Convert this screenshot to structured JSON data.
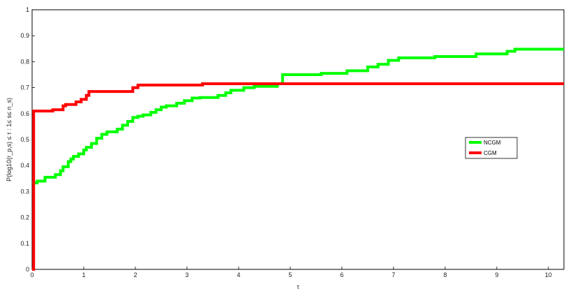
{
  "chart_data": {
    "type": "line",
    "xlabel": "τ",
    "ylabel": "P(log10(r_p,s) ≤ τ : 1≤ s≤ n_s)",
    "xlim": [
      0,
      10.3
    ],
    "ylim": [
      0,
      1
    ],
    "x_ticks": [
      "0",
      "1",
      "2",
      "3",
      "4",
      "5",
      "6",
      "7",
      "8",
      "9",
      "10"
    ],
    "y_ticks": [
      "0",
      "0.1",
      "0.2",
      "0.3",
      "0.4",
      "0.5",
      "0.6",
      "0.7",
      "0.8",
      "0.9",
      "1"
    ],
    "legend_position": "center-right",
    "grid": false,
    "series": [
      {
        "name": "NCGM",
        "color": "#00ff00",
        "step": true,
        "points": [
          [
            0,
            0.333
          ],
          [
            0.1,
            0.34
          ],
          [
            0.25,
            0.355
          ],
          [
            0.45,
            0.365
          ],
          [
            0.55,
            0.38
          ],
          [
            0.6,
            0.395
          ],
          [
            0.7,
            0.415
          ],
          [
            0.75,
            0.425
          ],
          [
            0.8,
            0.435
          ],
          [
            0.9,
            0.445
          ],
          [
            1.0,
            0.46
          ],
          [
            1.05,
            0.47
          ],
          [
            1.15,
            0.485
          ],
          [
            1.25,
            0.505
          ],
          [
            1.35,
            0.52
          ],
          [
            1.45,
            0.53
          ],
          [
            1.65,
            0.54
          ],
          [
            1.75,
            0.555
          ],
          [
            1.85,
            0.57
          ],
          [
            1.95,
            0.585
          ],
          [
            2.05,
            0.59
          ],
          [
            2.15,
            0.595
          ],
          [
            2.3,
            0.605
          ],
          [
            2.4,
            0.615
          ],
          [
            2.5,
            0.625
          ],
          [
            2.6,
            0.63
          ],
          [
            2.8,
            0.64
          ],
          [
            2.95,
            0.65
          ],
          [
            3.1,
            0.66
          ],
          [
            3.25,
            0.662
          ],
          [
            3.6,
            0.67
          ],
          [
            3.75,
            0.68
          ],
          [
            3.85,
            0.69
          ],
          [
            4.1,
            0.7
          ],
          [
            4.3,
            0.705
          ],
          [
            4.75,
            0.715
          ],
          [
            4.85,
            0.75
          ],
          [
            5.6,
            0.755
          ],
          [
            6.1,
            0.765
          ],
          [
            6.5,
            0.78
          ],
          [
            6.7,
            0.79
          ],
          [
            6.9,
            0.805
          ],
          [
            7.1,
            0.815
          ],
          [
            7.8,
            0.82
          ],
          [
            8.6,
            0.83
          ],
          [
            9.2,
            0.84
          ],
          [
            9.35,
            0.848
          ],
          [
            10.3,
            0.848
          ]
        ]
      },
      {
        "name": "CGM",
        "color": "#ff0000",
        "step": true,
        "points": [
          [
            0,
            0.0
          ],
          [
            0.03,
            0.61
          ],
          [
            0.4,
            0.615
          ],
          [
            0.6,
            0.63
          ],
          [
            0.65,
            0.635
          ],
          [
            0.85,
            0.645
          ],
          [
            0.95,
            0.655
          ],
          [
            1.05,
            0.67
          ],
          [
            1.1,
            0.685
          ],
          [
            1.95,
            0.7
          ],
          [
            2.05,
            0.71
          ],
          [
            3.3,
            0.715
          ],
          [
            10.3,
            0.715
          ]
        ]
      }
    ]
  }
}
